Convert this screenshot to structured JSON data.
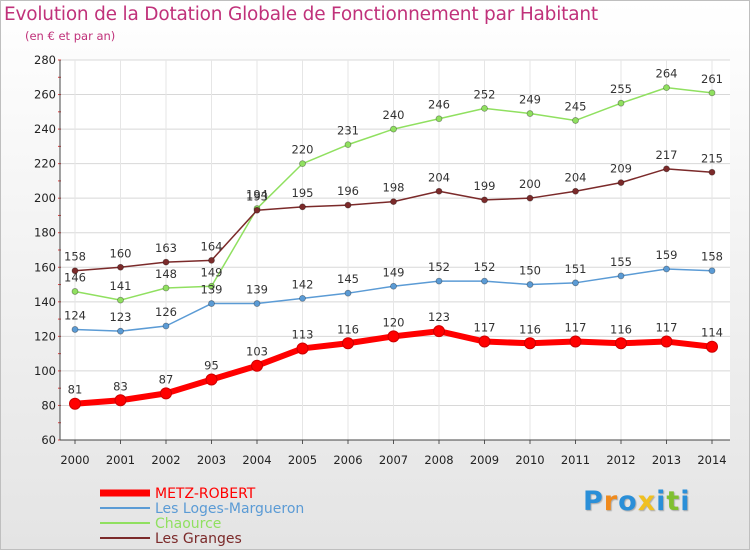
{
  "chart_data": {
    "type": "line",
    "title": "Evolution de la Dotation Globale de Fonctionnement par Habitant",
    "subtitle": "(en € et par an)",
    "xlabel": "",
    "ylabel": "",
    "ylim": [
      60,
      280
    ],
    "yticks": [
      60,
      80,
      100,
      120,
      140,
      160,
      180,
      200,
      220,
      240,
      260,
      280
    ],
    "x": [
      "2000",
      "2001",
      "2002",
      "2003",
      "2004",
      "2005",
      "2006",
      "2007",
      "2008",
      "2009",
      "2010",
      "2011",
      "2012",
      "2013",
      "2014"
    ],
    "legend_position": "bottom-left",
    "series": [
      {
        "name": "METZ-ROBERT",
        "color": "#ff0000",
        "values": [
          81,
          83,
          87,
          95,
          103,
          113,
          116,
          120,
          123,
          117,
          116,
          117,
          116,
          117,
          114
        ]
      },
      {
        "name": "Les Loges-Margueron",
        "color": "#5b9bd5",
        "values": [
          124,
          123,
          126,
          139,
          139,
          142,
          145,
          149,
          152,
          152,
          150,
          151,
          155,
          159,
          158
        ]
      },
      {
        "name": "Chaource",
        "color": "#90e060",
        "values": [
          146,
          141,
          148,
          149,
          194,
          220,
          231,
          240,
          246,
          252,
          249,
          245,
          255,
          264,
          261
        ]
      },
      {
        "name": "Les Granges",
        "color": "#7b2a2a",
        "values": [
          158,
          160,
          163,
          164,
          193,
          195,
          196,
          198,
          204,
          199,
          200,
          204,
          209,
          217,
          215
        ]
      }
    ]
  },
  "logo": {
    "letters": [
      "P",
      "r",
      "o",
      "x",
      "i",
      "t",
      "i"
    ],
    "colors": [
      "#2a8fd8",
      "#f08a1c",
      "#2a8fd8",
      "#f0c020",
      "#2a8fd8",
      "#80c030",
      "#2a8fd8"
    ]
  }
}
